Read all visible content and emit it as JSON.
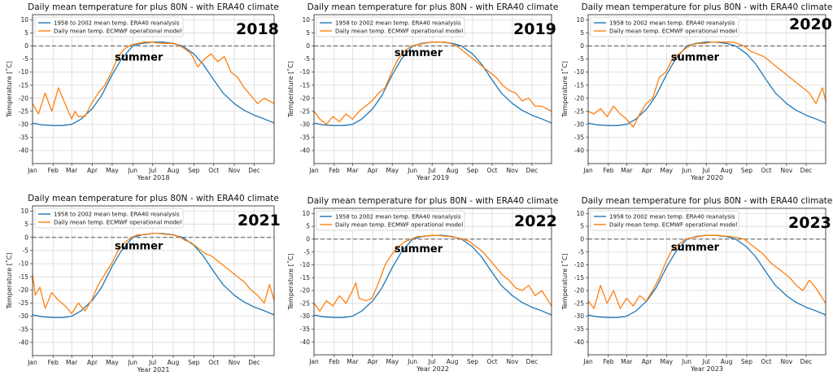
{
  "chart_data": [
    {
      "type": "line",
      "title": "Daily mean temperature for plus 80N - with ERA40 climate",
      "xlabel": "Year 2018",
      "ylabel": "Temperature [˚C]",
      "ylim": [
        -45,
        12
      ],
      "yticks": [
        10,
        5,
        0,
        -5,
        -10,
        -15,
        -20,
        -25,
        -30,
        -35,
        -40
      ],
      "xticks": [
        "Jan",
        "Feb",
        "Mar",
        "Apr",
        "May",
        "Jun",
        "Jul",
        "Aug",
        "Sep",
        "Oct",
        "Nov",
        "Dec"
      ],
      "grid": true,
      "legend_position": "upper-left",
      "annotations": {
        "year": "2018",
        "season": "summer"
      },
      "series": [
        {
          "name": "1958 to 2002 mean temp. ERA40 reanalysis",
          "color": "#1f77b4",
          "x": [
            1,
            15,
            32,
            46,
            60,
            74,
            91,
            105,
            121,
            135,
            152,
            166,
            182,
            196,
            213,
            227,
            244,
            258,
            274,
            288,
            305,
            319,
            335,
            349,
            365
          ],
          "y": [
            -29.5,
            -30.2,
            -30.5,
            -30.5,
            -30,
            -28,
            -24,
            -19,
            -11,
            -5,
            0,
            1,
            1.5,
            1.5,
            1,
            0,
            -3,
            -7,
            -13,
            -18,
            -22,
            -24.5,
            -26.5,
            -27.8,
            -29.5
          ]
        },
        {
          "name": "Daily mean temp. ECMWF operational model",
          "color": "#ff7f0e",
          "x": [
            1,
            10,
            20,
            30,
            40,
            50,
            60,
            65,
            70,
            80,
            90,
            100,
            110,
            120,
            130,
            140,
            150,
            160,
            170,
            180,
            190,
            200,
            210,
            220,
            230,
            240,
            250,
            260,
            270,
            280,
            290,
            300,
            310,
            320,
            330,
            340,
            350,
            365
          ],
          "y": [
            -22,
            -26,
            -18,
            -25,
            -16,
            -22,
            -28,
            -25,
            -27,
            -27,
            -22,
            -18,
            -15,
            -10,
            -4,
            -1,
            0.5,
            1,
            1.5,
            1.5,
            1.2,
            1,
            1,
            0.5,
            -1,
            -3,
            -8,
            -5,
            -3,
            -6,
            -4,
            -10,
            -12,
            -16,
            -19,
            -22,
            -20,
            -22
          ]
        }
      ]
    },
    {
      "type": "line",
      "title": "Daily mean temperature for plus 80N - with ERA40 climate",
      "xlabel": "Year 2019",
      "ylabel": "Temperature [˚C]",
      "ylim": [
        -45,
        12
      ],
      "yticks": [
        10,
        5,
        0,
        -5,
        -10,
        -15,
        -20,
        -25,
        -30,
        -35,
        -40
      ],
      "xticks": [
        "Jan",
        "Feb",
        "Mar",
        "Apr",
        "May",
        "Jun",
        "Jul",
        "Aug",
        "Sep",
        "Oct",
        "Nov",
        "Dec"
      ],
      "grid": true,
      "legend_position": "upper-left",
      "annotations": {
        "year": "2019",
        "season": "summer"
      },
      "series": [
        {
          "name": "1958 to 2002 mean temp. ERA40 reanalysis",
          "color": "#1f77b4",
          "x": [
            1,
            15,
            32,
            46,
            60,
            74,
            91,
            105,
            121,
            135,
            152,
            166,
            182,
            196,
            213,
            227,
            244,
            258,
            274,
            288,
            305,
            319,
            335,
            349,
            365
          ],
          "y": [
            -29.5,
            -30.2,
            -30.5,
            -30.5,
            -30,
            -28,
            -24,
            -19,
            -11,
            -5,
            0,
            1,
            1.5,
            1.5,
            1,
            0,
            -3,
            -7,
            -13,
            -18,
            -22,
            -24.5,
            -26.5,
            -27.8,
            -29.5
          ]
        },
        {
          "name": "Daily mean temp. ECMWF operational model",
          "color": "#ff7f0e",
          "x": [
            1,
            10,
            20,
            30,
            40,
            50,
            60,
            70,
            80,
            90,
            100,
            110,
            120,
            130,
            140,
            150,
            160,
            170,
            180,
            190,
            200,
            210,
            220,
            230,
            240,
            250,
            260,
            270,
            280,
            290,
            300,
            310,
            320,
            330,
            340,
            350,
            365
          ],
          "y": [
            -25,
            -28,
            -30,
            -27,
            -29,
            -26,
            -28,
            -25,
            -23,
            -21,
            -18,
            -16,
            -10,
            -5,
            -2,
            0,
            0.5,
            1,
            1.5,
            1.5,
            1.5,
            1,
            0,
            -2,
            -4,
            -6,
            -8,
            -10,
            -12,
            -15,
            -17,
            -18,
            -21,
            -20,
            -23,
            -23,
            -25
          ]
        }
      ]
    },
    {
      "type": "line",
      "title": "Daily mean temperature for plus 80N - with ERA40 climate",
      "xlabel": "Year 2020",
      "ylabel": "Temperature [˚C]",
      "ylim": [
        -45,
        12
      ],
      "yticks": [
        10,
        5,
        0,
        -5,
        -10,
        -15,
        -20,
        -25,
        -30,
        -35,
        -40
      ],
      "xticks": [
        "Jan",
        "Feb",
        "Mar",
        "Apr",
        "May",
        "Jun",
        "Jul",
        "Aug",
        "Sep",
        "Oct",
        "Nov",
        "Dec"
      ],
      "grid": true,
      "legend_position": "upper-left",
      "annotations": {
        "year": "2020",
        "season": "summer"
      },
      "series": [
        {
          "name": "1958 to 2002 mean temp. ERA40 reanalysis",
          "color": "#1f77b4",
          "x": [
            1,
            15,
            32,
            46,
            60,
            74,
            91,
            105,
            121,
            135,
            152,
            166,
            182,
            196,
            213,
            227,
            244,
            258,
            274,
            288,
            305,
            319,
            335,
            349,
            365
          ],
          "y": [
            -29.5,
            -30.2,
            -30.5,
            -30.5,
            -30,
            -28,
            -24,
            -19,
            -11,
            -5,
            0,
            1,
            1.5,
            1.5,
            1,
            0,
            -3,
            -7,
            -13,
            -18,
            -22,
            -24.5,
            -26.5,
            -27.8,
            -29.5
          ]
        },
        {
          "name": "Daily mean temp. ECMWF operational model",
          "color": "#ff7f0e",
          "x": [
            1,
            10,
            20,
            30,
            40,
            50,
            60,
            70,
            80,
            90,
            100,
            110,
            120,
            130,
            140,
            150,
            160,
            170,
            180,
            190,
            200,
            210,
            220,
            230,
            240,
            250,
            260,
            270,
            280,
            290,
            300,
            310,
            320,
            330,
            340,
            350,
            360,
            365
          ],
          "y": [
            -25,
            -26,
            -24,
            -27,
            -23,
            -26,
            -28,
            -31,
            -26,
            -22,
            -20,
            -12,
            -10,
            -5,
            -3,
            -1,
            0.5,
            1,
            1,
            1.5,
            1.5,
            1.5,
            1.5,
            1,
            0,
            -2,
            -3,
            -4,
            -6,
            -8,
            -10,
            -12,
            -14,
            -16,
            -18,
            -22,
            -16,
            -21
          ]
        }
      ]
    },
    {
      "type": "line",
      "title": "Daily mean temperature for plus 80N - with ERA40 climate",
      "xlabel": "Year 2021",
      "ylabel": "Temperature [˚C]",
      "ylim": [
        -45,
        12
      ],
      "yticks": [
        10,
        5,
        0,
        -5,
        -10,
        -15,
        -20,
        -25,
        -30,
        -35,
        -40
      ],
      "xticks": [
        "Jan",
        "Feb",
        "Mar",
        "Apr",
        "May",
        "Jun",
        "Jul",
        "Aug",
        "Sep",
        "Oct",
        "Nov",
        "Dec"
      ],
      "grid": true,
      "legend_position": "upper-left",
      "annotations": {
        "year": "2021",
        "season": "summer"
      },
      "series": [
        {
          "name": "1958 to 2002 mean temp. ERA40 reanalysis",
          "color": "#1f77b4",
          "x": [
            1,
            15,
            32,
            46,
            60,
            74,
            91,
            105,
            121,
            135,
            152,
            166,
            182,
            196,
            213,
            227,
            244,
            258,
            274,
            288,
            305,
            319,
            335,
            349,
            365
          ],
          "y": [
            -29.5,
            -30.2,
            -30.5,
            -30.5,
            -30,
            -28,
            -24,
            -19,
            -11,
            -5,
            0,
            1,
            1.5,
            1.5,
            1,
            0,
            -3,
            -7,
            -13,
            -18,
            -22,
            -24.5,
            -26.5,
            -27.8,
            -29.5
          ]
        },
        {
          "name": "Daily mean temp. ECMWF operational model",
          "color": "#ff7f0e",
          "x": [
            1,
            5,
            12,
            20,
            30,
            40,
            50,
            60,
            70,
            80,
            90,
            100,
            110,
            120,
            130,
            140,
            150,
            160,
            170,
            180,
            190,
            200,
            210,
            220,
            230,
            240,
            250,
            260,
            270,
            280,
            290,
            300,
            310,
            320,
            330,
            340,
            350,
            358,
            365
          ],
          "y": [
            -14,
            -22,
            -19,
            -27,
            -21,
            -24,
            -26,
            -29,
            -25,
            -28,
            -24,
            -18,
            -14,
            -10,
            -5,
            -2,
            0,
            1,
            1,
            1.5,
            1.5,
            1.2,
            1,
            0.5,
            -1,
            -2,
            -4,
            -6,
            -7,
            -9,
            -11,
            -13,
            -15,
            -17,
            -20,
            -22,
            -25,
            -18,
            -24
          ]
        }
      ]
    },
    {
      "type": "line",
      "title": "Daily mean temperature for plus 80N - with ERA40 climate",
      "xlabel": "Year 2022",
      "ylabel": "Temperature [˚C]",
      "ylim": [
        -45,
        12
      ],
      "yticks": [
        10,
        5,
        0,
        -5,
        -10,
        -15,
        -20,
        -25,
        -30,
        -35,
        -40
      ],
      "xticks": [
        "Jan",
        "Feb",
        "Mar",
        "Apr",
        "May",
        "Jun",
        "Jul",
        "Aug",
        "Sep",
        "Oct",
        "Nov",
        "Dec"
      ],
      "grid": true,
      "legend_position": "upper-left",
      "annotations": {
        "year": "2022",
        "season": "summer"
      },
      "series": [
        {
          "name": "1958 to 2002 mean temp. ERA40 reanalysis",
          "color": "#1f77b4",
          "x": [
            1,
            15,
            32,
            46,
            60,
            74,
            91,
            105,
            121,
            135,
            152,
            166,
            182,
            196,
            213,
            227,
            244,
            258,
            274,
            288,
            305,
            319,
            335,
            349,
            365
          ],
          "y": [
            -29.5,
            -30.2,
            -30.5,
            -30.5,
            -30,
            -28,
            -24,
            -19,
            -11,
            -5,
            0,
            1,
            1.5,
            1.5,
            1,
            0,
            -3,
            -7,
            -13,
            -18,
            -22,
            -24.5,
            -26.5,
            -27.8,
            -29.5
          ]
        },
        {
          "name": "Daily mean temp. ECMWF operational model",
          "color": "#ff7f0e",
          "x": [
            1,
            10,
            20,
            30,
            40,
            50,
            60,
            65,
            70,
            80,
            90,
            100,
            110,
            120,
            130,
            140,
            150,
            160,
            170,
            180,
            190,
            200,
            210,
            220,
            230,
            240,
            250,
            260,
            270,
            280,
            290,
            300,
            310,
            320,
            330,
            340,
            350,
            360,
            365
          ],
          "y": [
            -25,
            -28,
            -24,
            -26,
            -22,
            -25,
            -20,
            -17,
            -23,
            -24,
            -23,
            -17,
            -10,
            -6,
            -3,
            -1,
            0,
            1,
            1,
            1.5,
            1.5,
            1.2,
            1,
            0.5,
            0,
            -1,
            -3,
            -5,
            -8,
            -11,
            -14,
            -16,
            -19,
            -20,
            -18,
            -22,
            -20,
            -24,
            -26
          ]
        }
      ]
    },
    {
      "type": "line",
      "title": "Daily mean temperature for plus 80N - with ERA40 climate",
      "xlabel": "Year 2023",
      "ylabel": "Temperature [˚C]",
      "ylim": [
        -45,
        12
      ],
      "yticks": [
        10,
        5,
        0,
        -5,
        -10,
        -15,
        -20,
        -25,
        -30,
        -35,
        -40
      ],
      "xticks": [
        "Jan",
        "Feb",
        "Mar",
        "Apr",
        "May",
        "Jun",
        "Jul",
        "Aug",
        "Sep",
        "Oct",
        "Nov",
        "Dec"
      ],
      "grid": true,
      "legend_position": "upper-left",
      "annotations": {
        "year": "2023",
        "season": "summer"
      },
      "series": [
        {
          "name": "1958 to 2002 mean temp. ERA40 reanalysis",
          "color": "#1f77b4",
          "x": [
            1,
            15,
            32,
            46,
            60,
            74,
            91,
            105,
            121,
            135,
            152,
            166,
            182,
            196,
            213,
            227,
            244,
            258,
            274,
            288,
            305,
            319,
            335,
            349,
            365
          ],
          "y": [
            -29.5,
            -30.2,
            -30.5,
            -30.5,
            -30,
            -28,
            -24,
            -19,
            -11,
            -5,
            0,
            1,
            1.5,
            1.5,
            1,
            0,
            -3,
            -7,
            -13,
            -18,
            -22,
            -24.5,
            -26.5,
            -27.8,
            -29.5
          ]
        },
        {
          "name": "Daily mean temp. ECMWF operational model",
          "color": "#ff7f0e",
          "x": [
            1,
            10,
            20,
            30,
            40,
            50,
            60,
            70,
            80,
            90,
            100,
            110,
            120,
            130,
            140,
            150,
            160,
            170,
            180,
            190,
            200,
            210,
            220,
            230,
            240,
            250,
            260,
            270,
            280,
            290,
            300,
            310,
            320,
            330,
            340,
            350,
            360,
            365
          ],
          "y": [
            -24,
            -27,
            -18,
            -25,
            -20,
            -27,
            -23,
            -26,
            -22,
            -24,
            -20,
            -15,
            -9,
            -4,
            -2,
            0,
            0.5,
            1,
            1.5,
            1.5,
            1.5,
            1.2,
            1,
            0.5,
            0,
            -2,
            -4,
            -6,
            -9,
            -11,
            -13,
            -15,
            -18,
            -20,
            -16,
            -19,
            -23,
            -25
          ]
        }
      ]
    }
  ]
}
